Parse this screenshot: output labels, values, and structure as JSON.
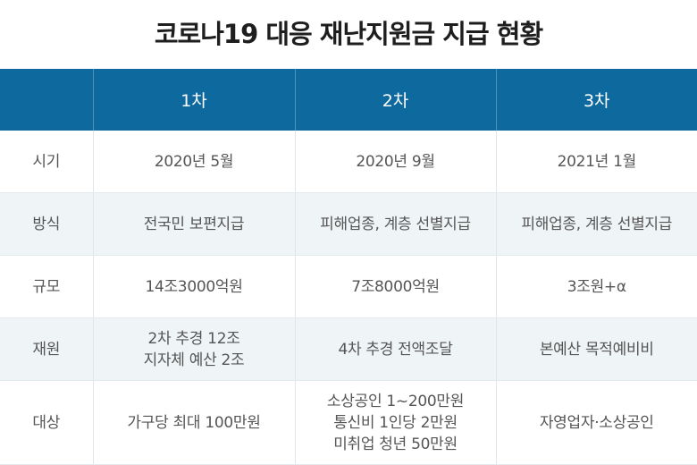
{
  "title": "코로나19 대응 재난지원금 지급 현황",
  "header": {
    "corner": "",
    "columns": [
      "1차",
      "2차",
      "3차"
    ]
  },
  "rows": [
    {
      "label": "시기",
      "cells": [
        [
          "2020년 5월"
        ],
        [
          "2020년 9월"
        ],
        [
          "2021년 1월"
        ]
      ]
    },
    {
      "label": "방식",
      "cells": [
        [
          "전국민 보편지급"
        ],
        [
          "피해업종, 계층 선별지급"
        ],
        [
          "피해업종, 계층 선별지급"
        ]
      ]
    },
    {
      "label": "규모",
      "cells": [
        [
          "14조3000억원"
        ],
        [
          "7조8000억원"
        ],
        [
          "3조원+α"
        ]
      ]
    },
    {
      "label": "재원",
      "cells": [
        [
          "2차 추경 12조",
          "지자체 예산 2조"
        ],
        [
          "4차 추경 전액조달"
        ],
        [
          "본예산 목적예비비"
        ]
      ]
    },
    {
      "label": "대상",
      "cells": [
        [
          "가구당 최대 100만원"
        ],
        [
          "소상공인 1~200만원",
          "통신비 1인당 2만원",
          "미취업 청년 50만원"
        ],
        [
          "자영업자·소상공인"
        ]
      ]
    }
  ],
  "colors": {
    "header_bg": "#0e6a9e",
    "alt_row_bg": "#eff4f6",
    "text": "#555555"
  }
}
